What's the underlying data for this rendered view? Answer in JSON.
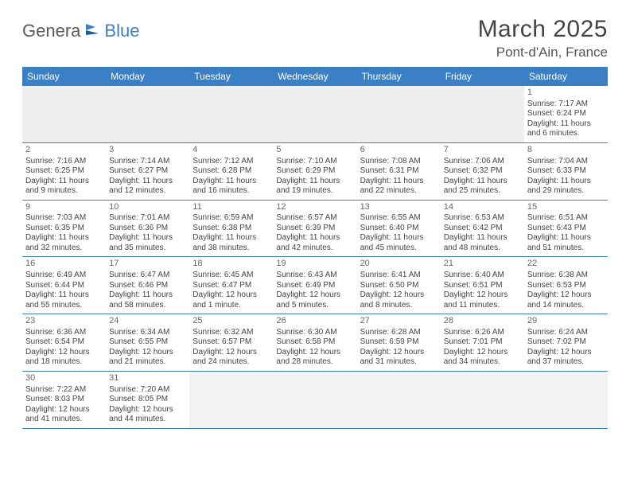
{
  "logo": {
    "text1": "Genera",
    "text2": "Blue"
  },
  "title": "March 2025",
  "location": "Pont-d'Ain, France",
  "dayHeaders": [
    "Sunday",
    "Monday",
    "Tuesday",
    "Wednesday",
    "Thursday",
    "Friday",
    "Saturday"
  ],
  "colors": {
    "accent": "#3b7fc4",
    "headerText": "#ffffff",
    "emptyCell": "#eeeeee",
    "text": "#444444",
    "titleText": "#444444"
  },
  "weeks": [
    [
      {
        "empty": true
      },
      {
        "empty": true
      },
      {
        "empty": true
      },
      {
        "empty": true
      },
      {
        "empty": true
      },
      {
        "empty": true
      },
      {
        "d": "1",
        "sr": "Sunrise: 7:17 AM",
        "ss": "Sunset: 6:24 PM",
        "dl1": "Daylight: 11 hours",
        "dl2": "and 6 minutes."
      }
    ],
    [
      {
        "d": "2",
        "sr": "Sunrise: 7:16 AM",
        "ss": "Sunset: 6:25 PM",
        "dl1": "Daylight: 11 hours",
        "dl2": "and 9 minutes."
      },
      {
        "d": "3",
        "sr": "Sunrise: 7:14 AM",
        "ss": "Sunset: 6:27 PM",
        "dl1": "Daylight: 11 hours",
        "dl2": "and 12 minutes."
      },
      {
        "d": "4",
        "sr": "Sunrise: 7:12 AM",
        "ss": "Sunset: 6:28 PM",
        "dl1": "Daylight: 11 hours",
        "dl2": "and 16 minutes."
      },
      {
        "d": "5",
        "sr": "Sunrise: 7:10 AM",
        "ss": "Sunset: 6:29 PM",
        "dl1": "Daylight: 11 hours",
        "dl2": "and 19 minutes."
      },
      {
        "d": "6",
        "sr": "Sunrise: 7:08 AM",
        "ss": "Sunset: 6:31 PM",
        "dl1": "Daylight: 11 hours",
        "dl2": "and 22 minutes."
      },
      {
        "d": "7",
        "sr": "Sunrise: 7:06 AM",
        "ss": "Sunset: 6:32 PM",
        "dl1": "Daylight: 11 hours",
        "dl2": "and 25 minutes."
      },
      {
        "d": "8",
        "sr": "Sunrise: 7:04 AM",
        "ss": "Sunset: 6:33 PM",
        "dl1": "Daylight: 11 hours",
        "dl2": "and 29 minutes."
      }
    ],
    [
      {
        "d": "9",
        "sr": "Sunrise: 7:03 AM",
        "ss": "Sunset: 6:35 PM",
        "dl1": "Daylight: 11 hours",
        "dl2": "and 32 minutes."
      },
      {
        "d": "10",
        "sr": "Sunrise: 7:01 AM",
        "ss": "Sunset: 6:36 PM",
        "dl1": "Daylight: 11 hours",
        "dl2": "and 35 minutes."
      },
      {
        "d": "11",
        "sr": "Sunrise: 6:59 AM",
        "ss": "Sunset: 6:38 PM",
        "dl1": "Daylight: 11 hours",
        "dl2": "and 38 minutes."
      },
      {
        "d": "12",
        "sr": "Sunrise: 6:57 AM",
        "ss": "Sunset: 6:39 PM",
        "dl1": "Daylight: 11 hours",
        "dl2": "and 42 minutes."
      },
      {
        "d": "13",
        "sr": "Sunrise: 6:55 AM",
        "ss": "Sunset: 6:40 PM",
        "dl1": "Daylight: 11 hours",
        "dl2": "and 45 minutes."
      },
      {
        "d": "14",
        "sr": "Sunrise: 6:53 AM",
        "ss": "Sunset: 6:42 PM",
        "dl1": "Daylight: 11 hours",
        "dl2": "and 48 minutes."
      },
      {
        "d": "15",
        "sr": "Sunrise: 6:51 AM",
        "ss": "Sunset: 6:43 PM",
        "dl1": "Daylight: 11 hours",
        "dl2": "and 51 minutes."
      }
    ],
    [
      {
        "d": "16",
        "sr": "Sunrise: 6:49 AM",
        "ss": "Sunset: 6:44 PM",
        "dl1": "Daylight: 11 hours",
        "dl2": "and 55 minutes."
      },
      {
        "d": "17",
        "sr": "Sunrise: 6:47 AM",
        "ss": "Sunset: 6:46 PM",
        "dl1": "Daylight: 11 hours",
        "dl2": "and 58 minutes."
      },
      {
        "d": "18",
        "sr": "Sunrise: 6:45 AM",
        "ss": "Sunset: 6:47 PM",
        "dl1": "Daylight: 12 hours",
        "dl2": "and 1 minute."
      },
      {
        "d": "19",
        "sr": "Sunrise: 6:43 AM",
        "ss": "Sunset: 6:49 PM",
        "dl1": "Daylight: 12 hours",
        "dl2": "and 5 minutes."
      },
      {
        "d": "20",
        "sr": "Sunrise: 6:41 AM",
        "ss": "Sunset: 6:50 PM",
        "dl1": "Daylight: 12 hours",
        "dl2": "and 8 minutes."
      },
      {
        "d": "21",
        "sr": "Sunrise: 6:40 AM",
        "ss": "Sunset: 6:51 PM",
        "dl1": "Daylight: 12 hours",
        "dl2": "and 11 minutes."
      },
      {
        "d": "22",
        "sr": "Sunrise: 6:38 AM",
        "ss": "Sunset: 6:53 PM",
        "dl1": "Daylight: 12 hours",
        "dl2": "and 14 minutes."
      }
    ],
    [
      {
        "d": "23",
        "sr": "Sunrise: 6:36 AM",
        "ss": "Sunset: 6:54 PM",
        "dl1": "Daylight: 12 hours",
        "dl2": "and 18 minutes."
      },
      {
        "d": "24",
        "sr": "Sunrise: 6:34 AM",
        "ss": "Sunset: 6:55 PM",
        "dl1": "Daylight: 12 hours",
        "dl2": "and 21 minutes."
      },
      {
        "d": "25",
        "sr": "Sunrise: 6:32 AM",
        "ss": "Sunset: 6:57 PM",
        "dl1": "Daylight: 12 hours",
        "dl2": "and 24 minutes."
      },
      {
        "d": "26",
        "sr": "Sunrise: 6:30 AM",
        "ss": "Sunset: 6:58 PM",
        "dl1": "Daylight: 12 hours",
        "dl2": "and 28 minutes."
      },
      {
        "d": "27",
        "sr": "Sunrise: 6:28 AM",
        "ss": "Sunset: 6:59 PM",
        "dl1": "Daylight: 12 hours",
        "dl2": "and 31 minutes."
      },
      {
        "d": "28",
        "sr": "Sunrise: 6:26 AM",
        "ss": "Sunset: 7:01 PM",
        "dl1": "Daylight: 12 hours",
        "dl2": "and 34 minutes."
      },
      {
        "d": "29",
        "sr": "Sunrise: 6:24 AM",
        "ss": "Sunset: 7:02 PM",
        "dl1": "Daylight: 12 hours",
        "dl2": "and 37 minutes."
      }
    ],
    [
      {
        "d": "30",
        "sr": "Sunrise: 7:22 AM",
        "ss": "Sunset: 8:03 PM",
        "dl1": "Daylight: 12 hours",
        "dl2": "and 41 minutes."
      },
      {
        "d": "31",
        "sr": "Sunrise: 7:20 AM",
        "ss": "Sunset: 8:05 PM",
        "dl1": "Daylight: 12 hours",
        "dl2": "and 44 minutes."
      },
      {
        "empty": true
      },
      {
        "empty": true
      },
      {
        "empty": true
      },
      {
        "empty": true
      },
      {
        "empty": true
      }
    ]
  ]
}
